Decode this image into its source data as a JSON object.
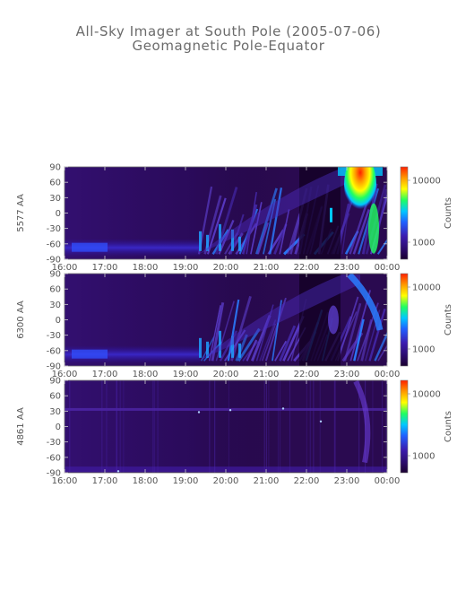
{
  "title": "All-Sky Imager at South Pole (2005-07-06)",
  "subtitle": "Geomagnetic Pole-Equator",
  "colors": {
    "background": "#ffffff",
    "text": "#555555",
    "colormap": [
      "#24003a",
      "#2a0a66",
      "#3b1cb0",
      "#2060ff",
      "#00c8ff",
      "#20ff60",
      "#ffff00",
      "#ff9900",
      "#ff2000"
    ]
  },
  "chart_data": [
    {
      "type": "heatmap",
      "ylabel": "5577 AA",
      "x_ticks": [
        "16:00",
        "17:00",
        "18:00",
        "19:00",
        "20:00",
        "21:00",
        "22:00",
        "23:00",
        "00:00"
      ],
      "y_ticks": [
        "90",
        "60",
        "30",
        "0",
        "-30",
        "-60",
        "-90"
      ],
      "ylim": [
        -90,
        90
      ],
      "colorbar": {
        "label": "Counts",
        "ticks": [
          "10000",
          "1000"
        ],
        "scale": "log"
      }
    },
    {
      "type": "heatmap",
      "ylabel": "6300 AA",
      "x_ticks": [
        "16:00",
        "17:00",
        "18:00",
        "19:00",
        "20:00",
        "21:00",
        "22:00",
        "23:00",
        "00:00"
      ],
      "y_ticks": [
        "90",
        "60",
        "30",
        "0",
        "-30",
        "-60",
        "-90"
      ],
      "ylim": [
        -90,
        90
      ],
      "colorbar": {
        "label": "Counts",
        "ticks": [
          "10000",
          "1000"
        ],
        "scale": "log"
      }
    },
    {
      "type": "heatmap",
      "ylabel": "4861 AA",
      "x_ticks": [
        "16:00",
        "17:00",
        "18:00",
        "19:00",
        "20:00",
        "21:00",
        "22:00",
        "23:00",
        "00:00"
      ],
      "y_ticks": [
        "90",
        "60",
        "30",
        "0",
        "-30",
        "-60",
        "-90"
      ],
      "ylim": [
        -90,
        90
      ],
      "colorbar": {
        "label": "Counts",
        "ticks": [
          "10000",
          "1000"
        ],
        "scale": "log"
      }
    }
  ]
}
